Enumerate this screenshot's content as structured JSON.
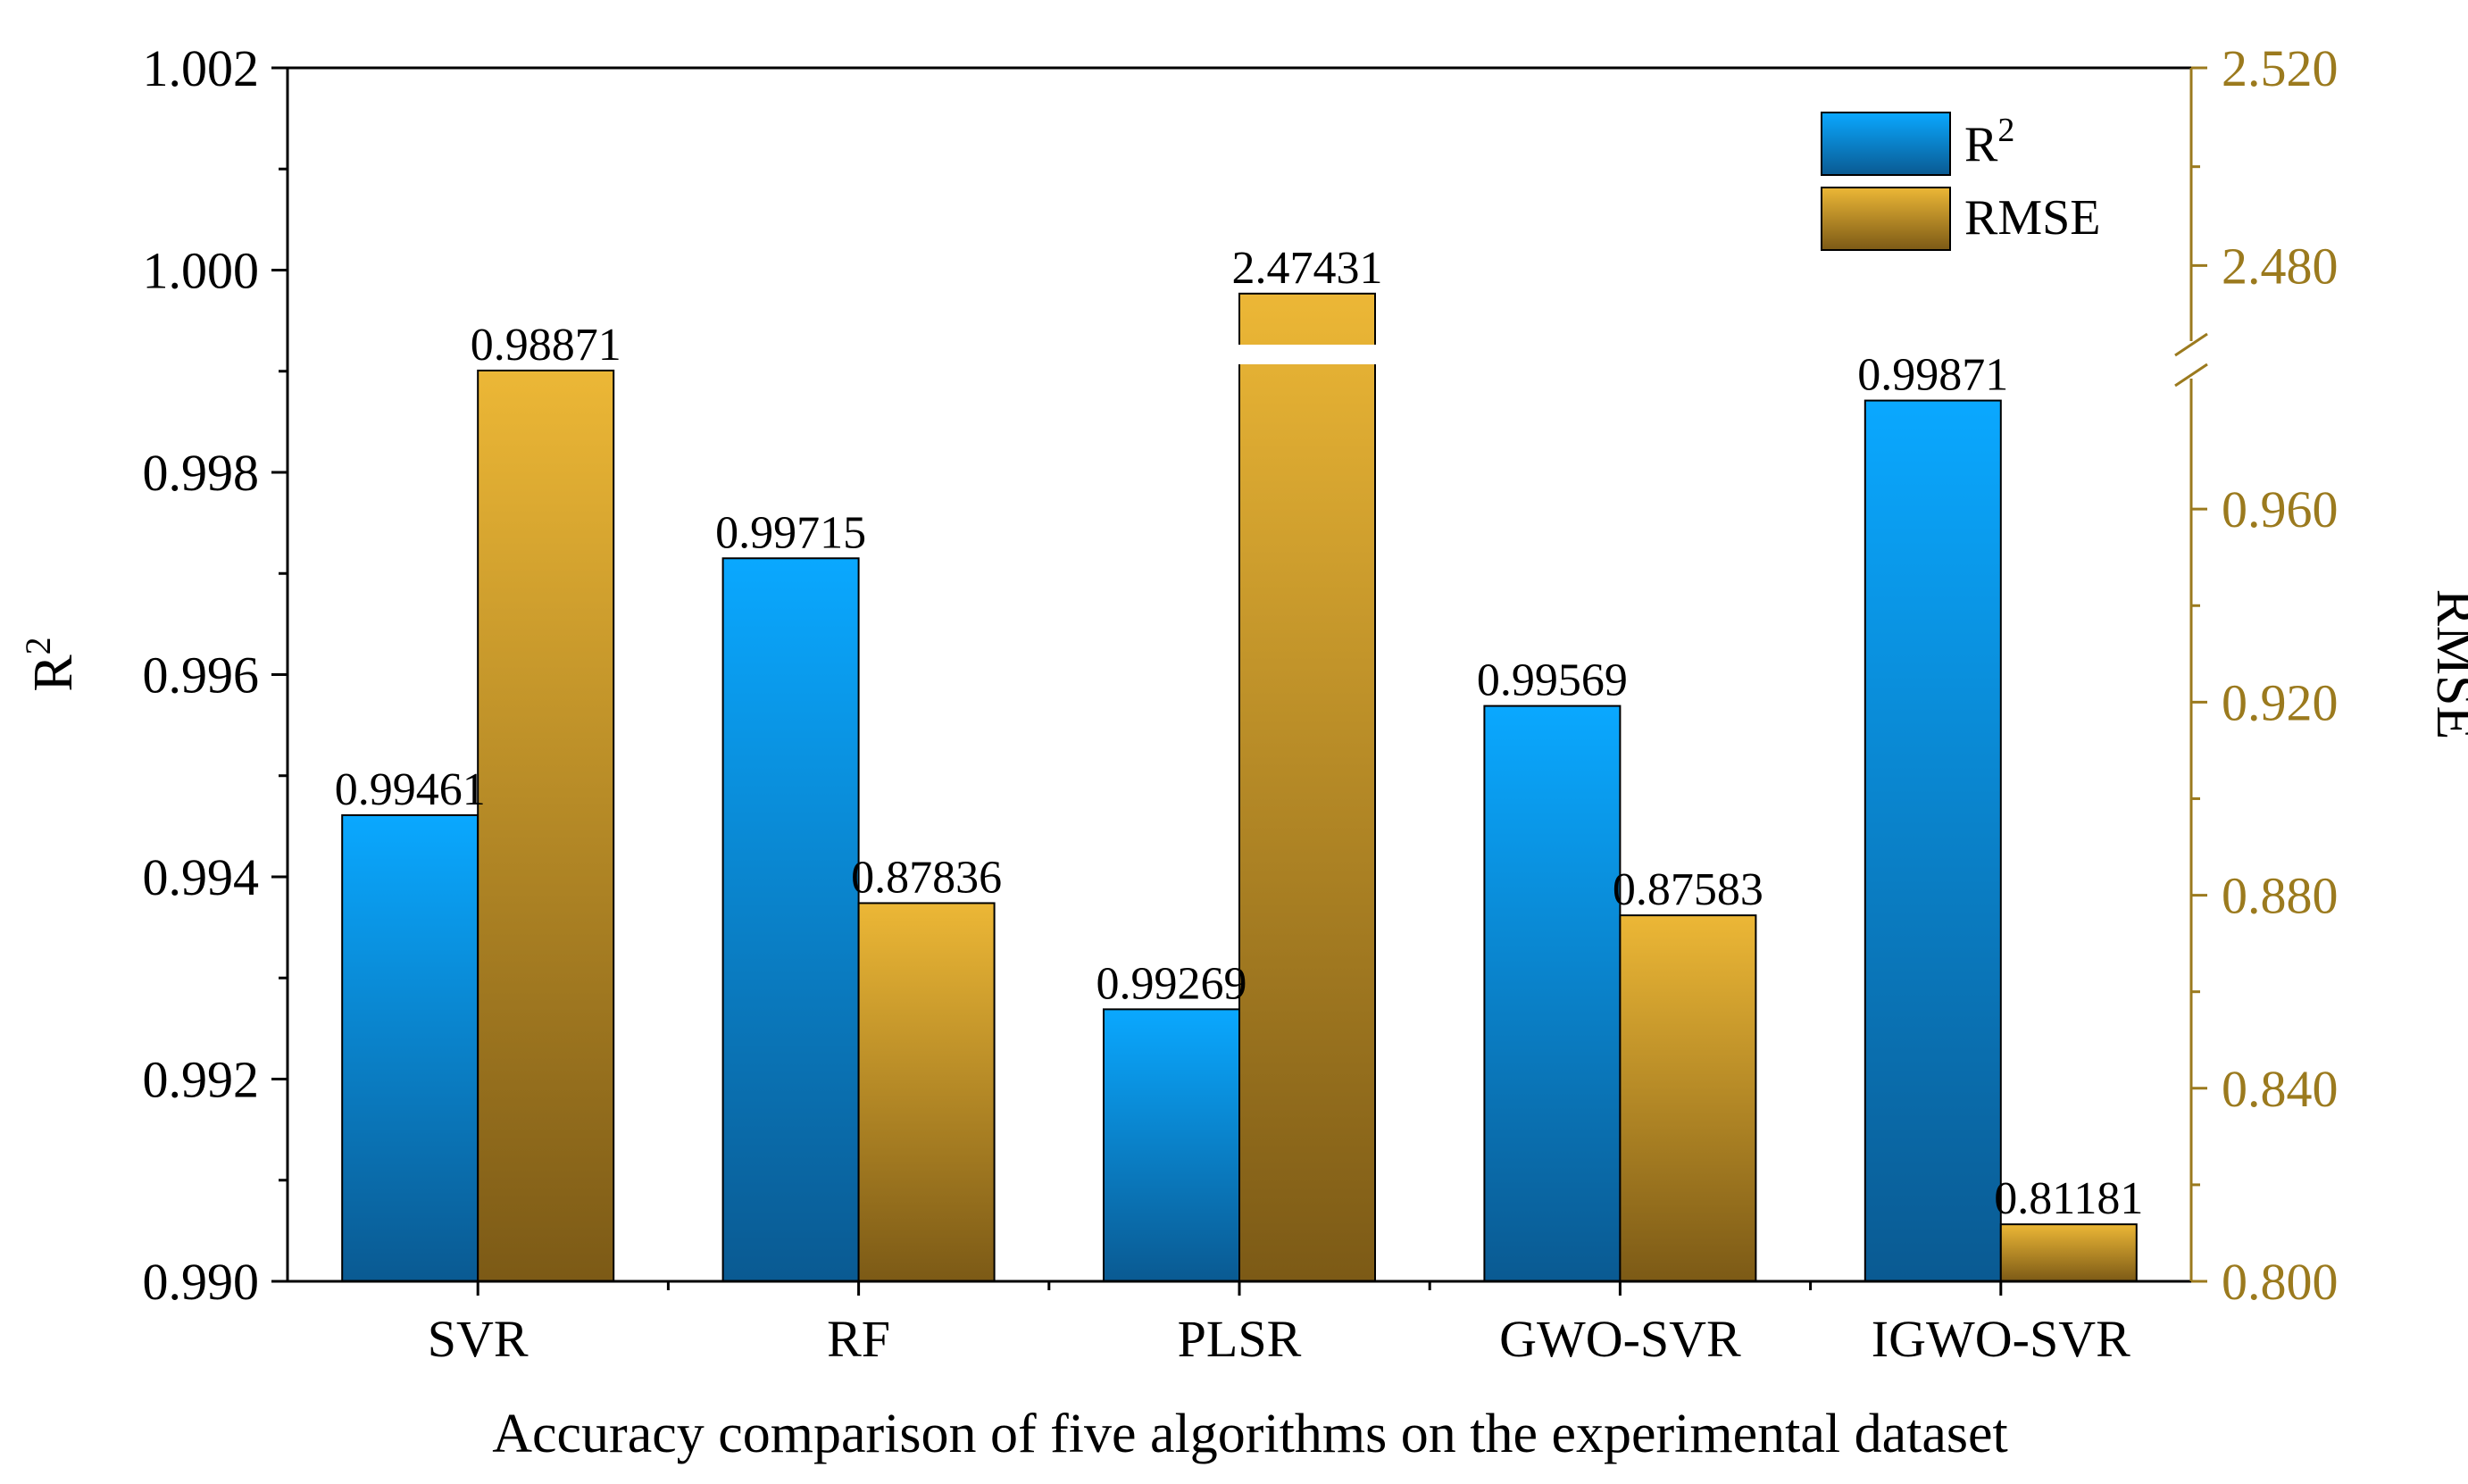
{
  "chart_data": {
    "type": "bar",
    "title": "",
    "xlabel": "Accuracy comparison of five algorithms on the experimental dataset",
    "categories": [
      "SVR",
      "RF",
      "PLSR",
      "GWO-SVR",
      "IGWO-SVR"
    ],
    "y_left": {
      "label": "R",
      "label_superscript": "2",
      "range": [
        0.99,
        1.002
      ],
      "ticks": [
        "1.002",
        "1.000",
        "0.998",
        "0.996",
        "0.994",
        "0.992",
        "0.990"
      ]
    },
    "y_right": {
      "label": "RMSE",
      "lower_range": [
        0.8,
        0.99
      ],
      "upper_range": [
        2.46,
        2.52
      ],
      "break": true,
      "ticks_lower": [
        "0.960",
        "0.920",
        "0.880",
        "0.840",
        "0.800"
      ],
      "ticks_upper": [
        "2.520",
        "2.480"
      ]
    },
    "series": [
      {
        "name": "R",
        "name_superscript": "2",
        "axis": "left",
        "color_top": "#0aa8ff",
        "color_bottom": "#0a5a92",
        "values": [
          0.99461,
          0.99715,
          0.99269,
          0.99569,
          0.99871
        ],
        "labels": [
          "0.99461",
          "0.99715",
          "0.99269",
          "0.99569",
          "0.99871"
        ]
      },
      {
        "name": "RMSE",
        "axis": "right",
        "color_top": "#ecb736",
        "color_bottom": "#7c5a16",
        "values": [
          0.98871,
          0.87836,
          2.47431,
          0.87583,
          0.81181
        ],
        "labels": [
          "0.98871",
          "0.87836",
          "2.47431",
          "0.87583",
          "0.81181"
        ]
      }
    ],
    "legend_position": "top-right",
    "axis_color_right": "#9b7a1e"
  }
}
